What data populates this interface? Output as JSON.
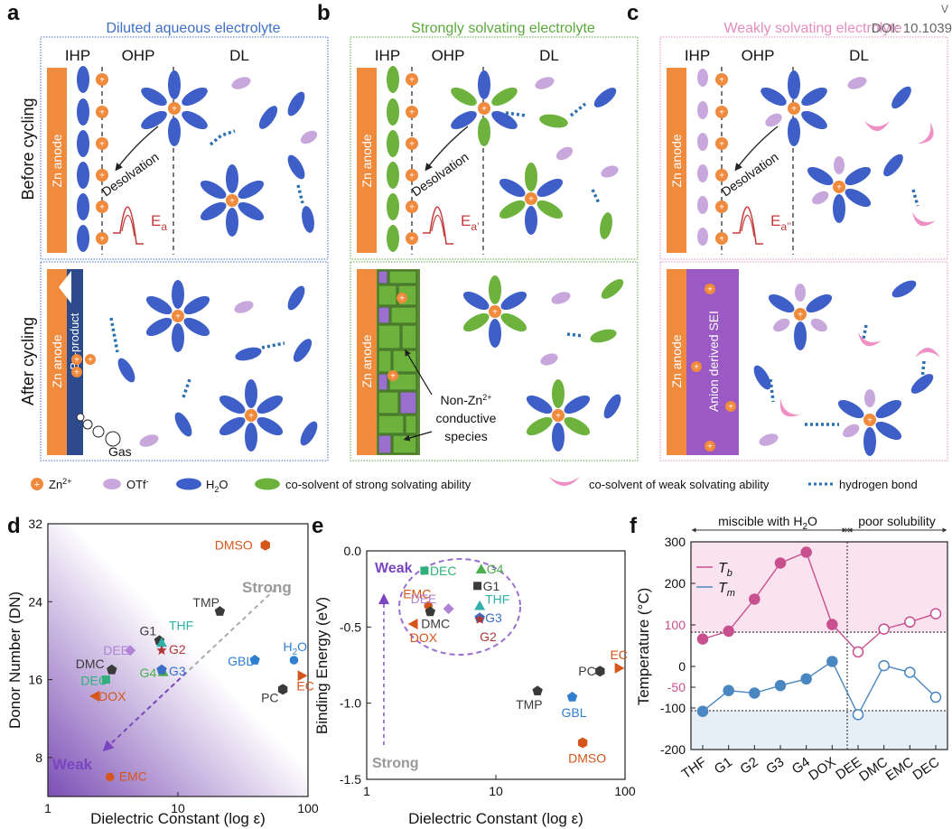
{
  "top": {
    "panels": [
      {
        "letter": "a",
        "title": "Diluted aqueous electrolyte",
        "color": "#3f6fc4",
        "ea": "E",
        "ea_sub": "a"
      },
      {
        "letter": "b",
        "title": "Strongly solvating electrolyte",
        "color": "#5aa83c",
        "ea": "E",
        "ea_sub": "a’"
      },
      {
        "letter": "c",
        "title": "Weakly solvating electrolyte",
        "color": "#e58cc0",
        "ea": "E",
        "ea_sub": "a’’"
      }
    ],
    "doi": "DOI: 10.1039",
    "doi_v": "V",
    "ihp": "IHP",
    "ohp": "OHP",
    "dl": "DL",
    "row_before": "Before cycling",
    "row_after": "After cycling",
    "zn_anode": "Zn anode",
    "desolvation": "Desolvation",
    "by_product": "By-product",
    "gas": "Gas",
    "non_zn_1": "Non-Zn",
    "non_zn_sup": "2+",
    "non_zn_2": "conductive",
    "non_zn_3": "species",
    "sei": "Anion derived SEI",
    "plus": "+"
  },
  "legend": {
    "zn": "Zn",
    "zn_sup": "2+",
    "otf": "OTf",
    "otf_sup": "-",
    "h2o": "H",
    "h2o_sub": "2",
    "h2o_end": "O",
    "strong": "co-solvent of strong solvating ability",
    "weak": "co-solvent of weak solvating ability",
    "hbond": "hydrogen bond"
  },
  "panel_d": {
    "letter": "d",
    "xlabel": "Dielectric Constant (log ε)",
    "ylabel": "Donor Number (DN)",
    "yticks": [
      "32",
      "24",
      "16",
      "8"
    ],
    "xticks": [
      "1",
      "10",
      "100"
    ],
    "strong": "Strong",
    "weak": "Weak",
    "points": [
      {
        "label": "DMSO",
        "color": "#d4561a"
      },
      {
        "label": "TMP",
        "color": "#3a3a3a"
      },
      {
        "label": "G1",
        "color": "#3a3a3a"
      },
      {
        "label": "THF",
        "color": "#2fb0a8"
      },
      {
        "label": "G2",
        "color": "#b03a3a"
      },
      {
        "label": "DEE",
        "color": "#b183d6"
      },
      {
        "label": "DMC",
        "color": "#3a3a3a"
      },
      {
        "label": "G4",
        "color": "#4cae4c"
      },
      {
        "label": "G3",
        "color": "#3a6fc4"
      },
      {
        "label": "DEC",
        "color": "#2fb07a"
      },
      {
        "label": "DOX",
        "color": "#d4561a"
      },
      {
        "label": "H",
        "sub": "2",
        "end": "O",
        "color": "#2f7fd0"
      },
      {
        "label": "GBL",
        "color": "#2f7fd0"
      },
      {
        "label": "PC",
        "color": "#3a3a3a"
      },
      {
        "label": "EC",
        "color": "#d4561a"
      },
      {
        "label": "EMC",
        "color": "#d4561a"
      }
    ]
  },
  "panel_e": {
    "letter": "e",
    "xlabel": "Dielectric Constant (log ε)",
    "ylabel": "Binding Energy (eV)",
    "yticks": [
      "0.0",
      "-0.5",
      "-1.0",
      "-1.5"
    ],
    "xticks": [
      "1",
      "10",
      "100"
    ],
    "weak": "Weak",
    "strong": "Strong",
    "points": [
      {
        "label": "DEC",
        "color": "#2fb07a"
      },
      {
        "label": "G4",
        "color": "#4cae4c"
      },
      {
        "label": "EMC",
        "color": "#d4561a"
      },
      {
        "label": "DEE",
        "color": "#b183d6"
      },
      {
        "label": "G1",
        "color": "#3a3a3a"
      },
      {
        "label": "THF",
        "color": "#2fb0a8"
      },
      {
        "label": "DMC",
        "color": "#3a3a3a"
      },
      {
        "label": "G3",
        "color": "#3a6fc4"
      },
      {
        "label": "DOX",
        "color": "#d4561a"
      },
      {
        "label": "G2",
        "color": "#b03a3a"
      },
      {
        "label": "EC",
        "color": "#d4561a"
      },
      {
        "label": "PC",
        "color": "#3a3a3a"
      },
      {
        "label": "TMP",
        "color": "#3a3a3a"
      },
      {
        "label": "GBL",
        "color": "#2f7fd0"
      },
      {
        "label": "DMSO",
        "color": "#d4561a"
      }
    ]
  },
  "panel_f": {
    "letter": "f",
    "ylabel": "Temperature (°C)",
    "miscible": "miscible with H",
    "miscible_sub": "2",
    "miscible_end": "O",
    "poor": "poor solubility",
    "tb": "T",
    "tb_sub": "b",
    "tm": "T",
    "tm_sub": "m",
    "yticks": [
      "300",
      "200",
      "100",
      "0",
      "-50",
      "-100",
      "-200"
    ],
    "solvents": [
      "THF",
      "G1",
      "G2",
      "G3",
      "G4",
      "DOX",
      "DEE",
      "DMC",
      "EMC",
      "DEC"
    ]
  },
  "chart_data": [
    {
      "type": "scatter",
      "title": "",
      "xlabel": "Dielectric Constant (log ε)",
      "ylabel": "Donor Number (DN)",
      "xscale": "log",
      "xlim": [
        1,
        100
      ],
      "ylim": [
        4,
        32
      ],
      "x": [
        47,
        21,
        7.2,
        7.5,
        7.5,
        4.3,
        3.1,
        7.7,
        7.5,
        2.8,
        2.3,
        78,
        39,
        64,
        90,
        3.0
      ],
      "y": [
        29.8,
        23,
        20,
        19.8,
        19,
        19,
        17,
        16.8,
        17,
        16,
        14.3,
        18,
        18,
        15,
        16.4,
        6
      ],
      "labels": [
        "DMSO",
        "TMP",
        "G1",
        "THF",
        "G2",
        "DEE",
        "DMC",
        "G4",
        "G3",
        "DEC",
        "DOX",
        "H2O",
        "GBL",
        "PC",
        "EC",
        "EMC"
      ]
    },
    {
      "type": "scatter",
      "title": "",
      "xlabel": "Dielectric Constant (log ε)",
      "ylabel": "Binding Energy (eV)",
      "xscale": "log",
      "xlim": [
        1,
        100
      ],
      "ylim": [
        -1.5,
        0.0
      ],
      "x": [
        2.8,
        7.7,
        3.0,
        4.3,
        7.2,
        7.5,
        3.1,
        7.5,
        2.3,
        7.5,
        90,
        64,
        21,
        39,
        47
      ],
      "y": [
        -0.13,
        -0.12,
        -0.36,
        -0.38,
        -0.23,
        -0.36,
        -0.4,
        -0.44,
        -0.48,
        -0.45,
        -0.77,
        -0.79,
        -0.92,
        -0.96,
        -1.26
      ],
      "labels": [
        "DEC",
        "G4",
        "EMC",
        "DEE",
        "G1",
        "THF",
        "DMC",
        "G3",
        "DOX",
        "G2",
        "EC",
        "PC",
        "TMP",
        "GBL",
        "DMSO"
      ]
    },
    {
      "type": "line",
      "title": "",
      "xlabel": "",
      "ylabel": "Temperature (°C)",
      "categories": [
        "THF",
        "G1",
        "G2",
        "G3",
        "G4",
        "DOX",
        "DEE",
        "DMC",
        "EMC",
        "DEC"
      ],
      "ylim": [
        -200,
        300
      ],
      "series": [
        {
          "name": "Tb",
          "values": [
            66,
            85,
            162,
            249,
            275,
            101,
            35,
            90,
            107,
            127
          ]
        },
        {
          "name": "Tm",
          "values": [
            -108,
            -58,
            -64,
            -46,
            -30,
            12,
            -116,
            2,
            -14,
            -74
          ]
        }
      ],
      "reference_lines": [
        100,
        -50
      ]
    }
  ]
}
